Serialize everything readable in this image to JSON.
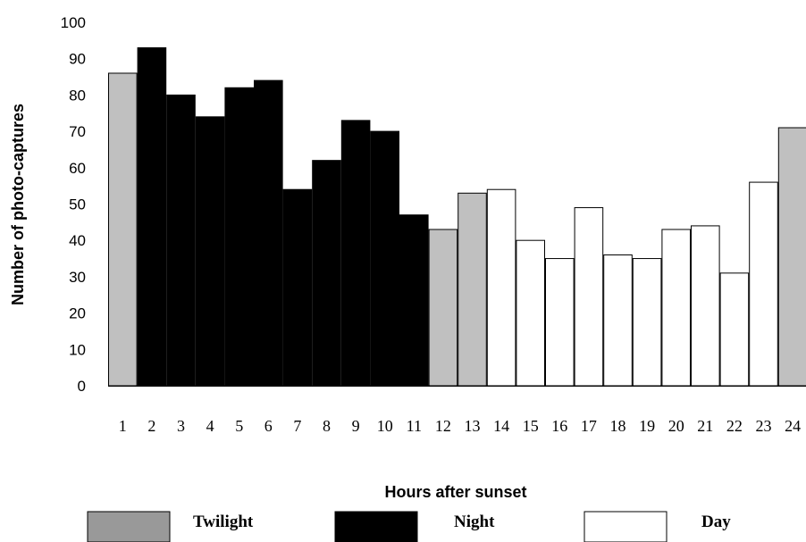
{
  "chart_data": {
    "type": "bar",
    "xlabel": "Hours after sunset",
    "ylabel": "Number of photo-captures",
    "ylim": [
      0,
      100
    ],
    "yticks": [
      0,
      10,
      20,
      30,
      40,
      50,
      60,
      70,
      80,
      90,
      100
    ],
    "categories": [
      "1",
      "2",
      "3",
      "4",
      "5",
      "6",
      "7",
      "8",
      "9",
      "10",
      "11",
      "12",
      "13",
      "14",
      "15",
      "16",
      "17",
      "18",
      "19",
      "20",
      "21",
      "22",
      "23",
      "24"
    ],
    "values": [
      86,
      93,
      80,
      74,
      82,
      84,
      54,
      62,
      73,
      70,
      47,
      43,
      53,
      54,
      40,
      35,
      49,
      36,
      35,
      43,
      44,
      31,
      56,
      71
    ],
    "period": [
      "Twilight",
      "Night",
      "Night",
      "Night",
      "Night",
      "Night",
      "Night",
      "Night",
      "Night",
      "Night",
      "Night",
      "Twilight",
      "Twilight",
      "Day",
      "Day",
      "Day",
      "Day",
      "Day",
      "Day",
      "Day",
      "Day",
      "Day",
      "Day",
      "Twilight"
    ],
    "legend": [
      {
        "label": "Twilight",
        "color": "#c0c0c0"
      },
      {
        "label": "Night",
        "color": "#000000"
      },
      {
        "label": "Day",
        "color": "#ffffff"
      }
    ],
    "grid": false,
    "legend_position": "bottom"
  }
}
